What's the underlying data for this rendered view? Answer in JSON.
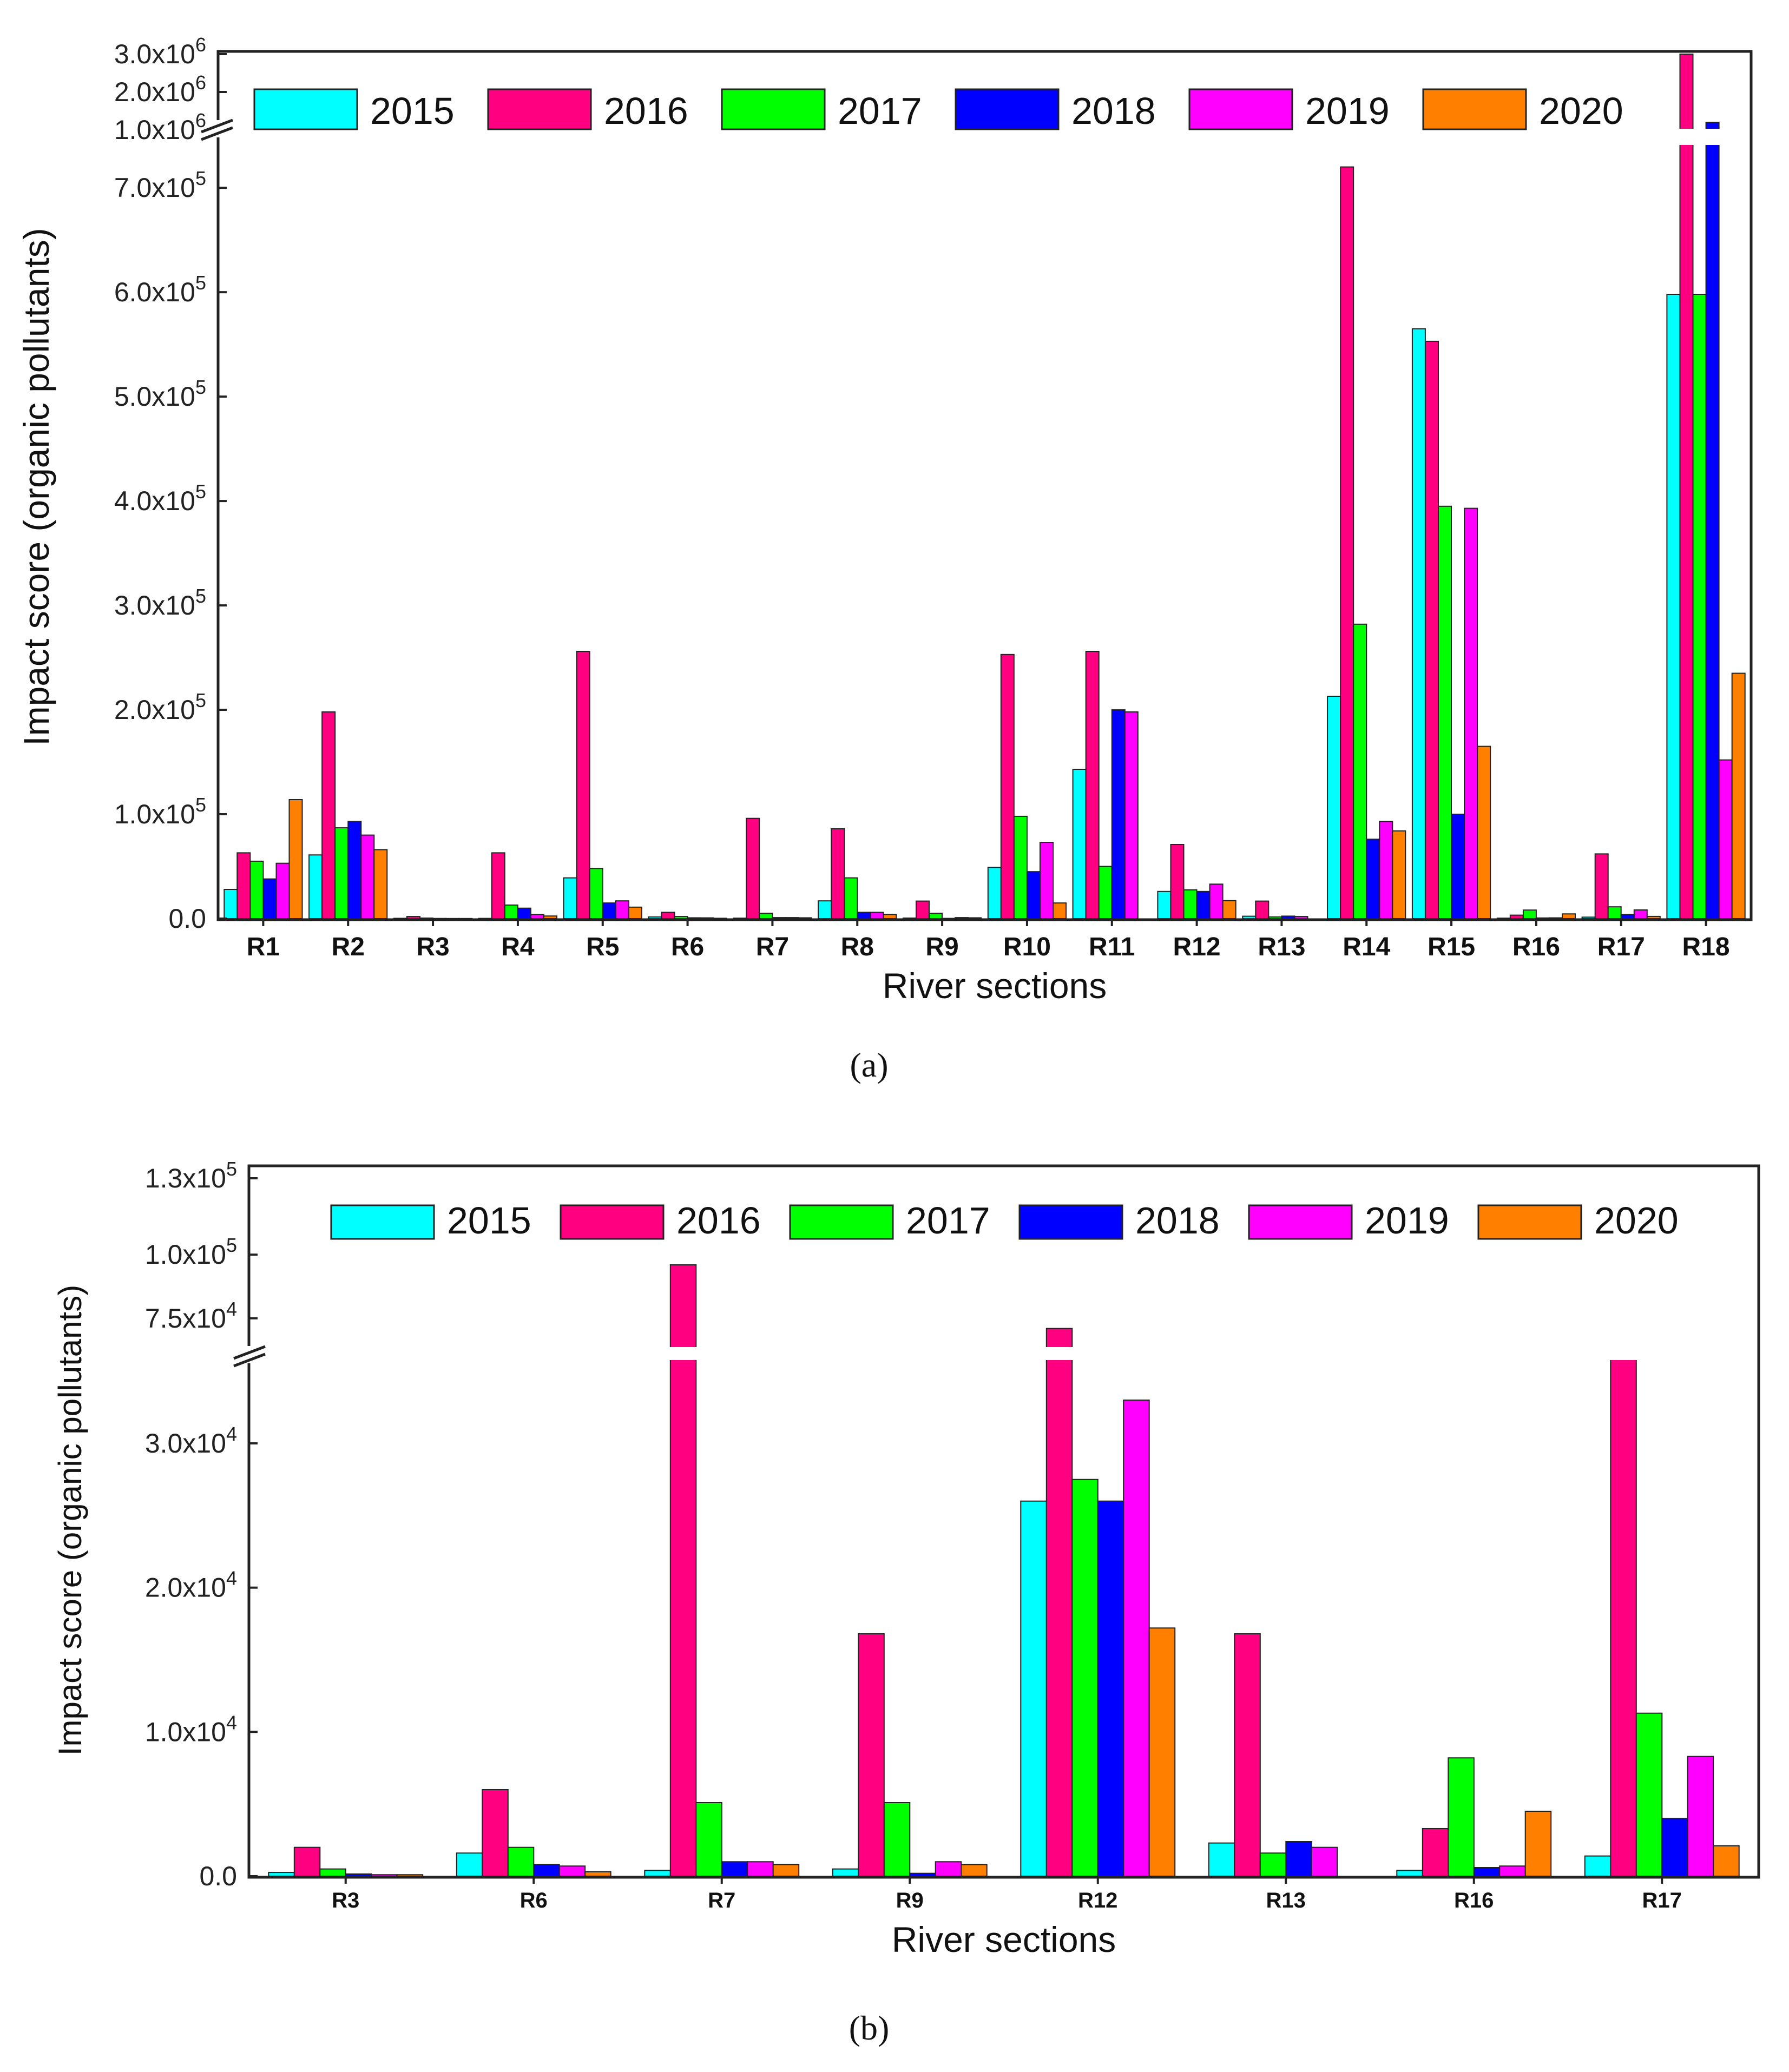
{
  "chart_data": [
    {
      "panel": "a",
      "type": "bar",
      "title": "",
      "xlabel": "River sections",
      "ylabel": "Impact score (organic pollutants)",
      "categories": [
        "R1",
        "R2",
        "R3",
        "R4",
        "R5",
        "R6",
        "R7",
        "R8",
        "R9",
        "R10",
        "R11",
        "R12",
        "R13",
        "R14",
        "R15",
        "R16",
        "R17",
        "R18"
      ],
      "series": [
        {
          "name": "2015",
          "color": "#00FFFF",
          "values": [
            28000,
            61000,
            260,
            200,
            39000,
            1600,
            400,
            17000,
            500,
            49000,
            143000,
            26000,
            2300,
            213000,
            565000,
            400,
            1400,
            598000
          ]
        },
        {
          "name": "2016",
          "color": "#FF0080",
          "values": [
            63000,
            198000,
            2000,
            63000,
            256000,
            6000,
            96000,
            86000,
            16800,
            253000,
            256000,
            71000,
            16800,
            720000,
            553000,
            3300,
            62000,
            3000000
          ]
        },
        {
          "name": "2017",
          "color": "#00FF00",
          "values": [
            55000,
            87000,
            500,
            13000,
            48000,
            2000,
            5100,
            39000,
            5100,
            98000,
            50000,
            27500,
            1600,
            282000,
            395000,
            8200,
            11300,
            598000
          ]
        },
        {
          "name": "2018",
          "color": "#0000FF",
          "values": [
            38000,
            93000,
            150,
            10000,
            15000,
            800,
            1000,
            6000,
            200,
            45000,
            200000,
            26000,
            2400,
            76000,
            100000,
            600,
            4000,
            1200000
          ]
        },
        {
          "name": "2019",
          "color": "#FF00FF",
          "values": [
            53000,
            80000,
            100,
            4000,
            17000,
            700,
            1000,
            6000,
            1000,
            73000,
            198000,
            33000,
            2000,
            93000,
            393000,
            700,
            8300,
            152000
          ]
        },
        {
          "name": "2020",
          "color": "#FF8000",
          "values": [
            114000,
            66000,
            100,
            2500,
            11000,
            300,
            800,
            4000,
            800,
            15000,
            0,
            17200,
            0,
            84000,
            165000,
            4500,
            2100,
            235000
          ]
        }
      ],
      "y_axis_lower": {
        "range": [
          0,
          740000
        ],
        "ticks": [
          "0.0",
          "1.0x10^5",
          "2.0x10^5",
          "3.0x10^5",
          "4.0x10^5",
          "5.0x10^5",
          "6.0x10^5",
          "7.0x10^5"
        ]
      },
      "y_axis_upper": {
        "range": [
          1000000,
          3000000
        ],
        "ticks": [
          "1.0x10^6",
          "2.0x10^6",
          "3.0x10^6"
        ]
      },
      "axis_break": true,
      "legend": "top, inside"
    },
    {
      "panel": "b",
      "type": "bar",
      "title": "",
      "xlabel": "River sections",
      "ylabel": "Impact score (organic pollutants)",
      "categories": [
        "R3",
        "R6",
        "R7",
        "R9",
        "R12",
        "R13",
        "R16",
        "R17"
      ],
      "series": [
        {
          "name": "2015",
          "color": "#00FFFF",
          "values": [
            260,
            1600,
            400,
            500,
            26000,
            2300,
            400,
            1400
          ]
        },
        {
          "name": "2016",
          "color": "#FF0080",
          "values": [
            2000,
            6000,
            96000,
            16800,
            71000,
            16800,
            3300,
            62000
          ]
        },
        {
          "name": "2017",
          "color": "#00FF00",
          "values": [
            500,
            2000,
            5100,
            5100,
            27500,
            1600,
            8200,
            11300
          ]
        },
        {
          "name": "2018",
          "color": "#0000FF",
          "values": [
            150,
            800,
            1000,
            200,
            26000,
            2400,
            600,
            4000
          ]
        },
        {
          "name": "2019",
          "color": "#FF00FF",
          "values": [
            100,
            700,
            1000,
            1000,
            33000,
            2000,
            700,
            8300
          ]
        },
        {
          "name": "2020",
          "color": "#FF8000",
          "values": [
            100,
            300,
            800,
            800,
            17200,
            0,
            4500,
            2100
          ]
        }
      ],
      "y_axis_lower": {
        "range": [
          0,
          36000
        ],
        "ticks": [
          "0.0",
          "1.0x10^4",
          "2.0x10^4",
          "3.0x10^4"
        ]
      },
      "y_axis_upper": {
        "range": [
          62000,
          130000
        ],
        "ticks": [
          "7.5x10^4",
          "1.0x10^5",
          "1.3x10^5"
        ]
      },
      "axis_break": true,
      "legend": "top, inside"
    }
  ],
  "panel_labels": {
    "a": "(a)",
    "b": "(b)"
  },
  "legend_labels": [
    "2015",
    "2016",
    "2017",
    "2018",
    "2019",
    "2020"
  ]
}
